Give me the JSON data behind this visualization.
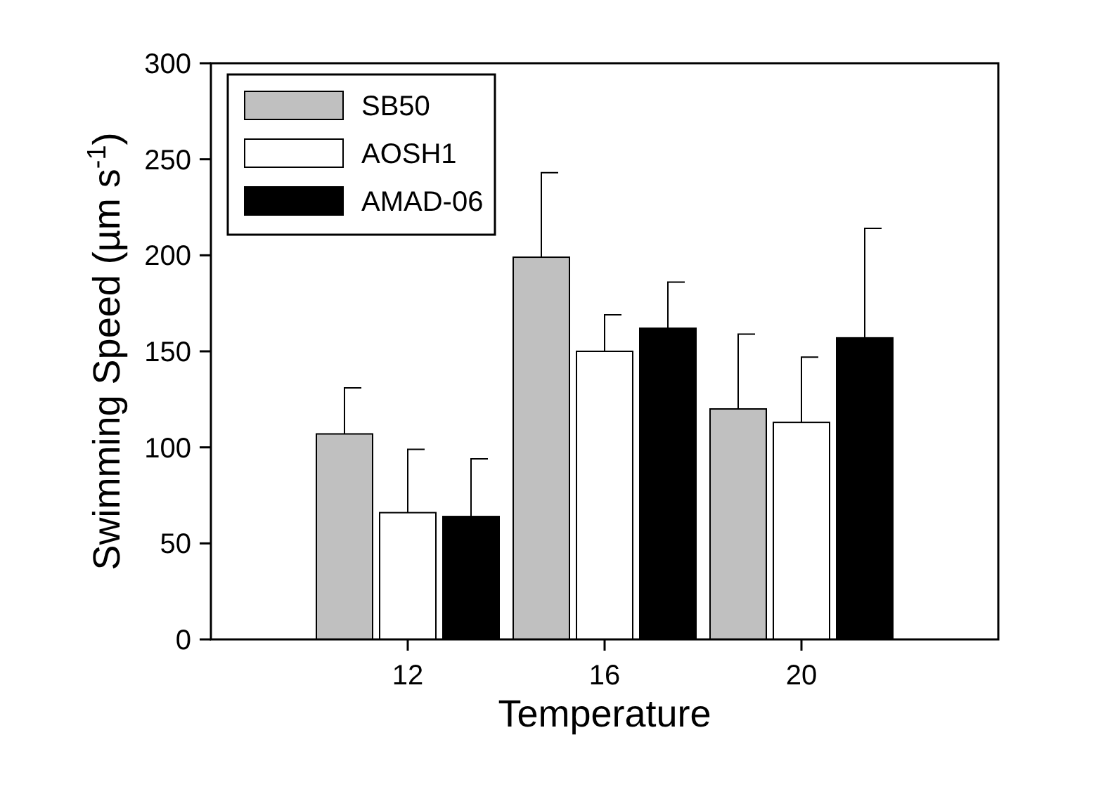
{
  "chart_data": {
    "type": "bar",
    "xlabel": "Temperature",
    "ylabel": "Swimming Speed (µm s$^{-1}$)",
    "x": [
      12,
      16,
      20
    ],
    "xlim": [
      8,
      24
    ],
    "xticks": [
      12,
      16,
      20
    ],
    "ylim": [
      0,
      300
    ],
    "yticks": [
      0,
      50,
      100,
      150,
      200,
      250,
      300
    ],
    "legend": "top left",
    "grid": false,
    "series": [
      {
        "name": "SB50",
        "color": "#c0c0c0",
        "values": [
          107,
          199,
          120
        ],
        "errors": [
          [
            107,
            131
          ],
          [
            199,
            243
          ],
          [
            120,
            159
          ]
        ]
      },
      {
        "name": "AOSH1",
        "color": "#ffffff",
        "values": [
          66,
          150,
          113
        ],
        "errors": [
          [
            66,
            99
          ],
          [
            150,
            169
          ],
          [
            113,
            147
          ]
        ]
      },
      {
        "name": "AMAD-06",
        "color": "#000000",
        "values": [
          64,
          162,
          157
        ],
        "errors": [
          [
            64,
            94
          ],
          [
            162,
            186
          ],
          [
            157,
            214
          ]
        ]
      }
    ]
  }
}
